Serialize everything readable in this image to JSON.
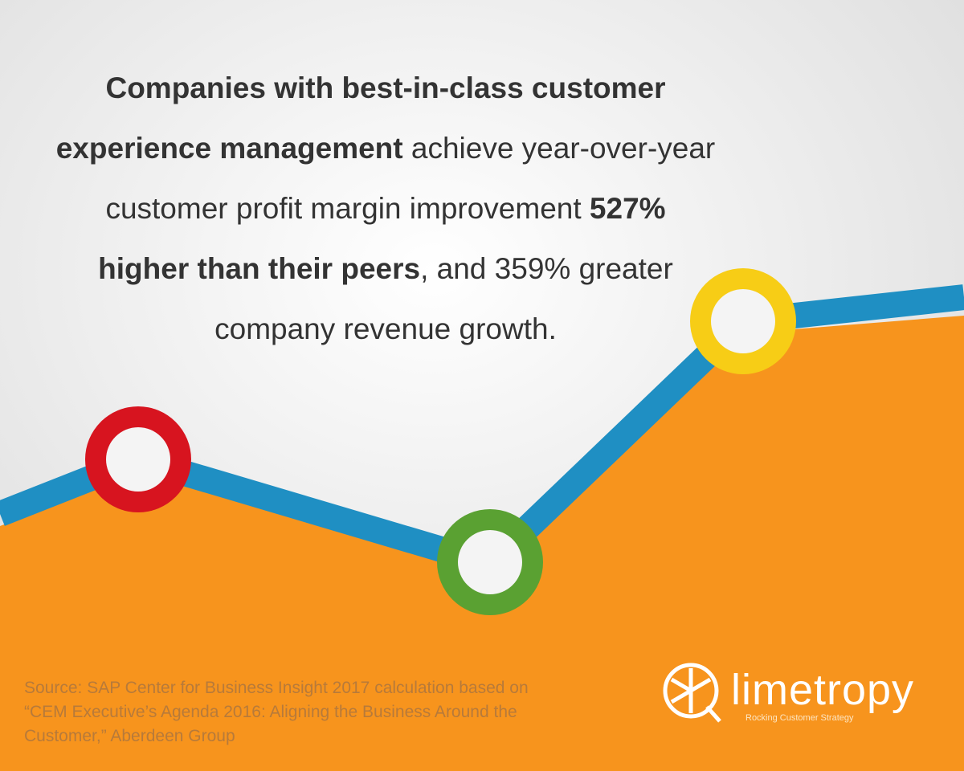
{
  "headline": {
    "lines": [
      [
        {
          "text": "Companies with best-in-class customer",
          "bold": true
        }
      ],
      [
        {
          "text": "experience management",
          "bold": true
        },
        {
          "text": " achieve year-over-year",
          "bold": false
        }
      ],
      [
        {
          "text": "customer profit margin improvement ",
          "bold": false
        },
        {
          "text": "527%",
          "bold": true
        }
      ],
      [
        {
          "text": "higher than their peers",
          "bold": true
        },
        {
          "text": ", and 359% greater",
          "bold": false
        }
      ],
      [
        {
          "text": "company revenue growth.",
          "bold": false
        }
      ]
    ]
  },
  "source": {
    "lines": [
      "Source: SAP Center for Business Insight 2017 calculation based on",
      "“CEM Executive’s Agenda 2016: Aligning the Business Around the",
      "Customer,” Aberdeen Group"
    ]
  },
  "logo": {
    "name": "limetropy",
    "tagline": "Rocking Customer Strategy"
  }
}
